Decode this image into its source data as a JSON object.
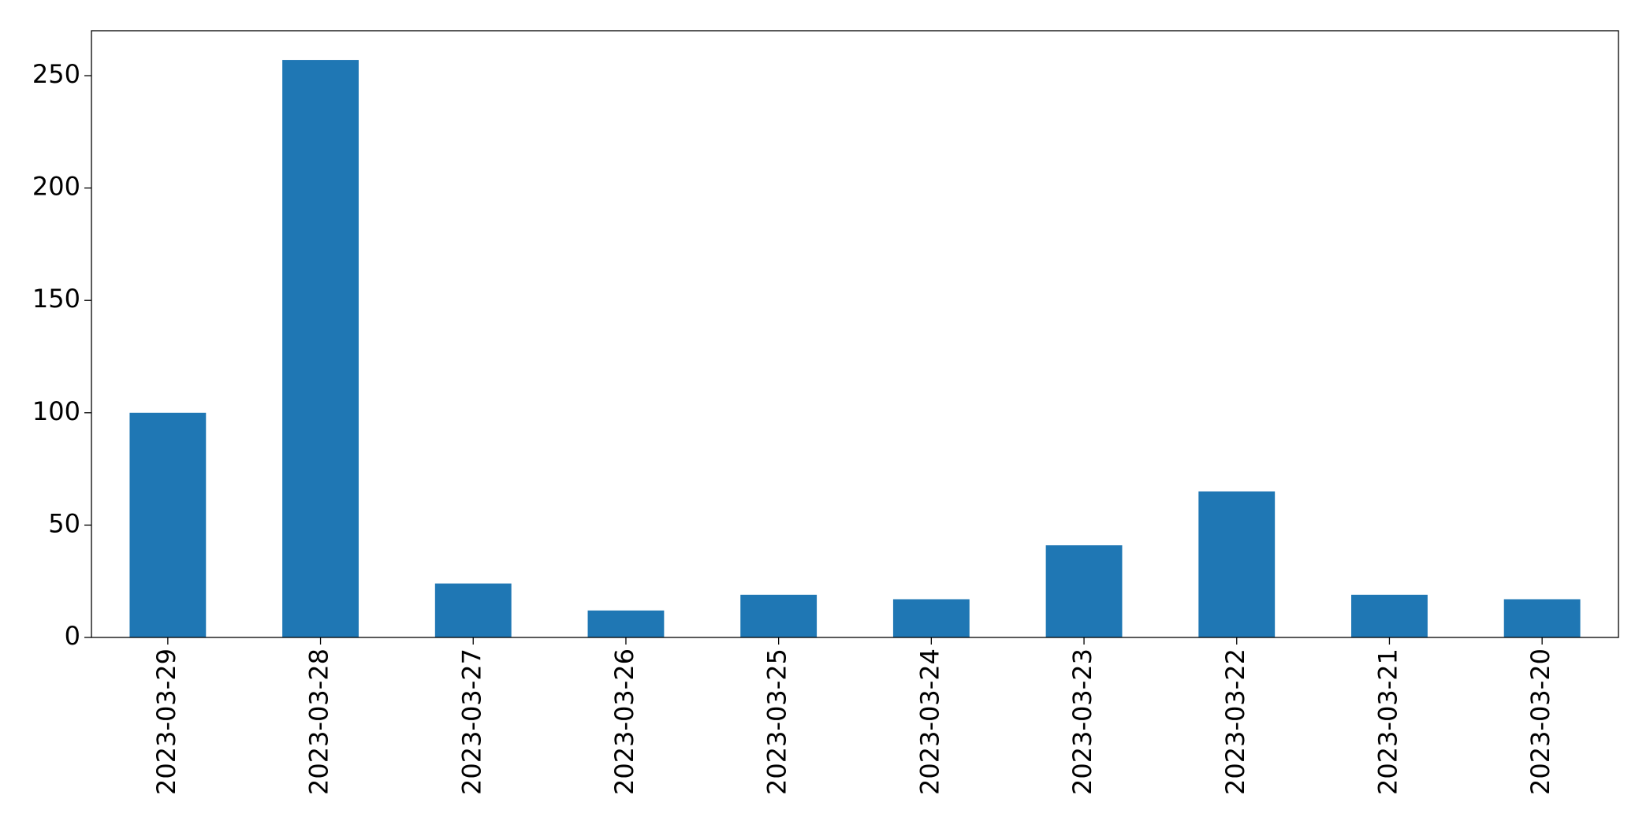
{
  "chart_data": {
    "type": "bar",
    "categories": [
      "2023-03-29",
      "2023-03-28",
      "2023-03-27",
      "2023-03-26",
      "2023-03-25",
      "2023-03-24",
      "2023-03-23",
      "2023-03-22",
      "2023-03-21",
      "2023-03-20"
    ],
    "values": [
      100,
      257,
      24,
      12,
      19,
      17,
      41,
      65,
      19,
      17
    ],
    "color": "#1f77b4",
    "ylim": [
      0,
      270
    ],
    "yticks": [
      0,
      50,
      100,
      150,
      200,
      250
    ],
    "grid": false
  }
}
